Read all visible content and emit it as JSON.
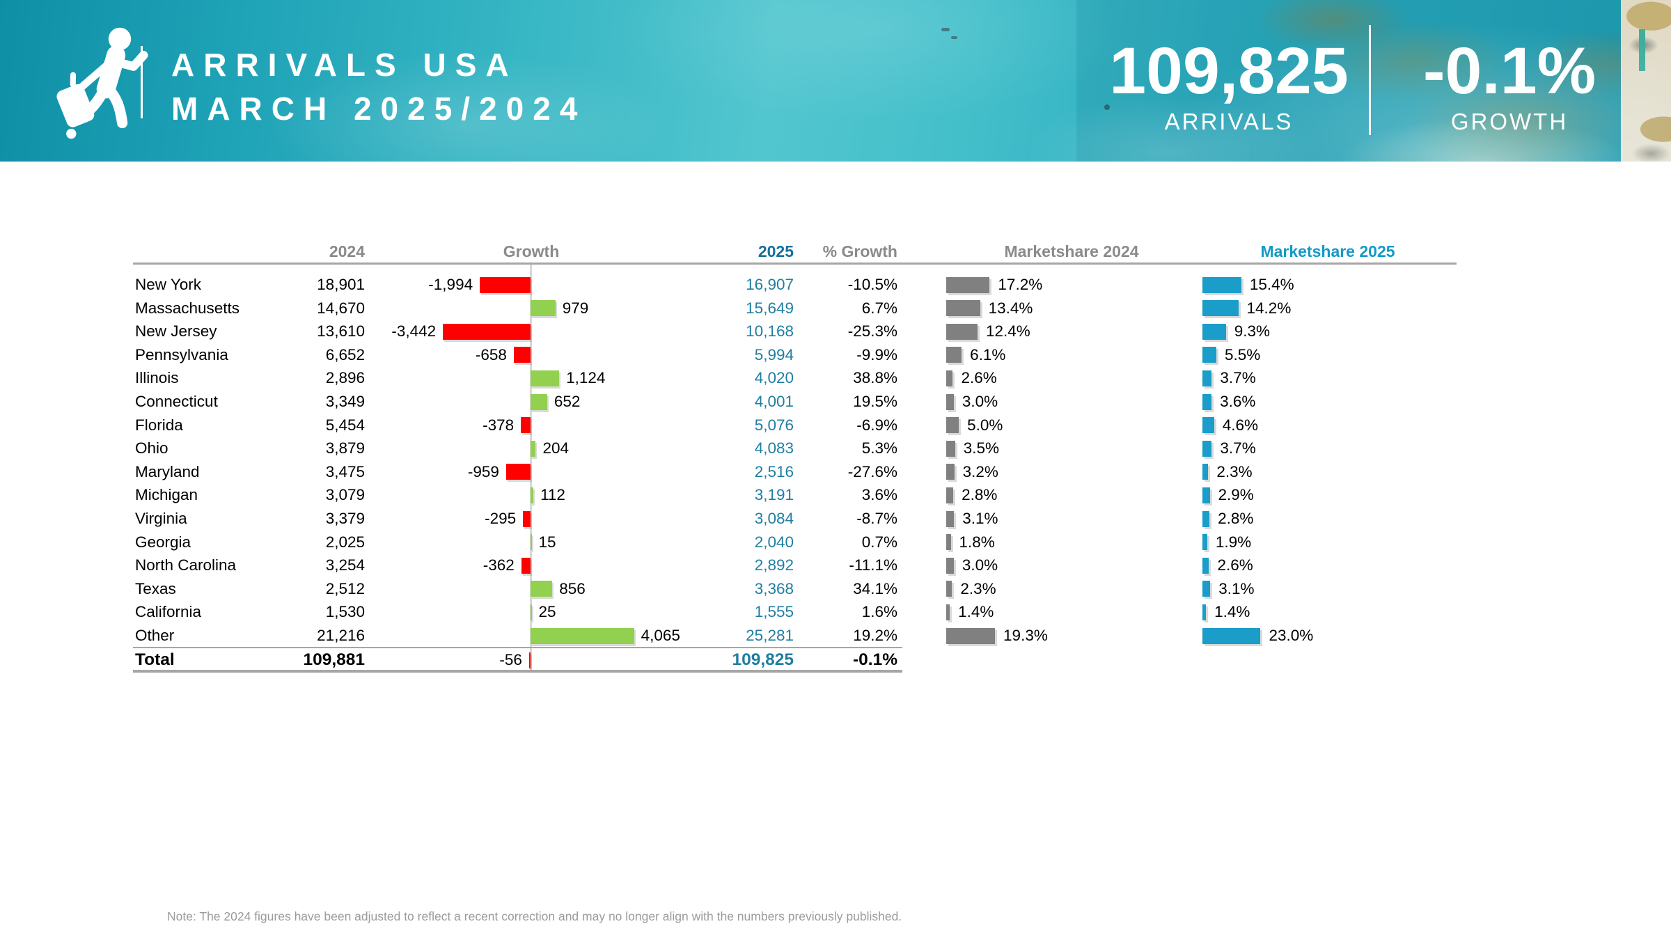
{
  "header": {
    "title_line1": "ARRIVALS USA",
    "title_line2": "MARCH 2025/2024",
    "icon": "traveler-with-luggage-icon",
    "stats": [
      {
        "value": "109,825",
        "label": "ARRIVALS"
      },
      {
        "value": "-0.1%",
        "label": "GROWTH"
      }
    ]
  },
  "chart_data": {
    "type": "table",
    "title": "ARRIVALS USA MARCH 2025/2024",
    "columns": [
      "2024",
      "Growth",
      "2025",
      "% Growth",
      "Marketshare 2024",
      "Marketshare 2025"
    ],
    "legend_position": "none",
    "grid": false,
    "rows": [
      {
        "state": "New York",
        "v2024": 18901,
        "v2024_label": "18,901",
        "growth": -1994,
        "growth_label": "-1,994",
        "v2025": 16907,
        "v2025_label": "16,907",
        "pct_growth": "-10.5%",
        "ms2024": 17.2,
        "ms2024_label": "17.2%",
        "ms2025": 15.4,
        "ms2025_label": "15.4%"
      },
      {
        "state": "Massachusetts",
        "v2024": 14670,
        "v2024_label": "14,670",
        "growth": 979,
        "growth_label": "979",
        "v2025": 15649,
        "v2025_label": "15,649",
        "pct_growth": "6.7%",
        "ms2024": 13.4,
        "ms2024_label": "13.4%",
        "ms2025": 14.2,
        "ms2025_label": "14.2%"
      },
      {
        "state": "New Jersey",
        "v2024": 13610,
        "v2024_label": "13,610",
        "growth": -3442,
        "growth_label": "-3,442",
        "v2025": 10168,
        "v2025_label": "10,168",
        "pct_growth": "-25.3%",
        "ms2024": 12.4,
        "ms2024_label": "12.4%",
        "ms2025": 9.3,
        "ms2025_label": "9.3%"
      },
      {
        "state": "Pennsylvania",
        "v2024": 6652,
        "v2024_label": "6,652",
        "growth": -658,
        "growth_label": "-658",
        "v2025": 5994,
        "v2025_label": "5,994",
        "pct_growth": "-9.9%",
        "ms2024": 6.1,
        "ms2024_label": "6.1%",
        "ms2025": 5.5,
        "ms2025_label": "5.5%"
      },
      {
        "state": "Illinois",
        "v2024": 2896,
        "v2024_label": "2,896",
        "growth": 1124,
        "growth_label": "1,124",
        "v2025": 4020,
        "v2025_label": "4,020",
        "pct_growth": "38.8%",
        "ms2024": 2.6,
        "ms2024_label": "2.6%",
        "ms2025": 3.7,
        "ms2025_label": "3.7%"
      },
      {
        "state": "Connecticut",
        "v2024": 3349,
        "v2024_label": "3,349",
        "growth": 652,
        "growth_label": "652",
        "v2025": 4001,
        "v2025_label": "4,001",
        "pct_growth": "19.5%",
        "ms2024": 3.0,
        "ms2024_label": "3.0%",
        "ms2025": 3.6,
        "ms2025_label": "3.6%"
      },
      {
        "state": "Florida",
        "v2024": 5454,
        "v2024_label": "5,454",
        "growth": -378,
        "growth_label": "-378",
        "v2025": 5076,
        "v2025_label": "5,076",
        "pct_growth": "-6.9%",
        "ms2024": 5.0,
        "ms2024_label": "5.0%",
        "ms2025": 4.6,
        "ms2025_label": "4.6%"
      },
      {
        "state": "Ohio",
        "v2024": 3879,
        "v2024_label": "3,879",
        "growth": 204,
        "growth_label": "204",
        "v2025": 4083,
        "v2025_label": "4,083",
        "pct_growth": "5.3%",
        "ms2024": 3.5,
        "ms2024_label": "3.5%",
        "ms2025": 3.7,
        "ms2025_label": "3.7%"
      },
      {
        "state": "Maryland",
        "v2024": 3475,
        "v2024_label": "3,475",
        "growth": -959,
        "growth_label": "-959",
        "v2025": 2516,
        "v2025_label": "2,516",
        "pct_growth": "-27.6%",
        "ms2024": 3.2,
        "ms2024_label": "3.2%",
        "ms2025": 2.3,
        "ms2025_label": "2.3%"
      },
      {
        "state": "Michigan",
        "v2024": 3079,
        "v2024_label": "3,079",
        "growth": 112,
        "growth_label": "112",
        "v2025": 3191,
        "v2025_label": "3,191",
        "pct_growth": "3.6%",
        "ms2024": 2.8,
        "ms2024_label": "2.8%",
        "ms2025": 2.9,
        "ms2025_label": "2.9%"
      },
      {
        "state": "Virginia",
        "v2024": 3379,
        "v2024_label": "3,379",
        "growth": -295,
        "growth_label": "-295",
        "v2025": 3084,
        "v2025_label": "3,084",
        "pct_growth": "-8.7%",
        "ms2024": 3.1,
        "ms2024_label": "3.1%",
        "ms2025": 2.8,
        "ms2025_label": "2.8%"
      },
      {
        "state": "Georgia",
        "v2024": 2025,
        "v2024_label": "2,025",
        "growth": 15,
        "growth_label": "15",
        "v2025": 2040,
        "v2025_label": "2,040",
        "pct_growth": "0.7%",
        "ms2024": 1.8,
        "ms2024_label": "1.8%",
        "ms2025": 1.9,
        "ms2025_label": "1.9%"
      },
      {
        "state": "North Carolina",
        "v2024": 3254,
        "v2024_label": "3,254",
        "growth": -362,
        "growth_label": "-362",
        "v2025": 2892,
        "v2025_label": "2,892",
        "pct_growth": "-11.1%",
        "ms2024": 3.0,
        "ms2024_label": "3.0%",
        "ms2025": 2.6,
        "ms2025_label": "2.6%"
      },
      {
        "state": "Texas",
        "v2024": 2512,
        "v2024_label": "2,512",
        "growth": 856,
        "growth_label": "856",
        "v2025": 3368,
        "v2025_label": "3,368",
        "pct_growth": "34.1%",
        "ms2024": 2.3,
        "ms2024_label": "2.3%",
        "ms2025": 3.1,
        "ms2025_label": "3.1%"
      },
      {
        "state": "California",
        "v2024": 1530,
        "v2024_label": "1,530",
        "growth": 25,
        "growth_label": "25",
        "v2025": 1555,
        "v2025_label": "1,555",
        "pct_growth": "1.6%",
        "ms2024": 1.4,
        "ms2024_label": "1.4%",
        "ms2025": 1.4,
        "ms2025_label": "1.4%"
      },
      {
        "state": "Other",
        "v2024": 21216,
        "v2024_label": "21,216",
        "growth": 4065,
        "growth_label": "4,065",
        "v2025": 25281,
        "v2025_label": "25,281",
        "pct_growth": "19.2%",
        "ms2024": 19.3,
        "ms2024_label": "19.3%",
        "ms2025": 23.0,
        "ms2025_label": "23.0%"
      }
    ],
    "total": {
      "state": "Total",
      "v2024": 109881,
      "v2024_label": "109,881",
      "growth": -56,
      "growth_label": "-56",
      "v2025": 109825,
      "v2025_label": "109,825",
      "pct_growth": "-0.1%"
    },
    "bar_colors": {
      "growth_negative": "#ff0000",
      "growth_positive": "#92d050",
      "marketshare_2024": "#808080",
      "marketshare_2025": "#1b9dc9"
    },
    "text_colors": {
      "values_2025": "#1f7ea1",
      "header_2025": "#15719b",
      "header_marketshare_2025": "#1499c7",
      "header_gray": "#8a8a8a"
    }
  },
  "note": "Note: The 2024 figures have been adjusted to reflect a recent correction and may no longer align with the numbers previously published."
}
